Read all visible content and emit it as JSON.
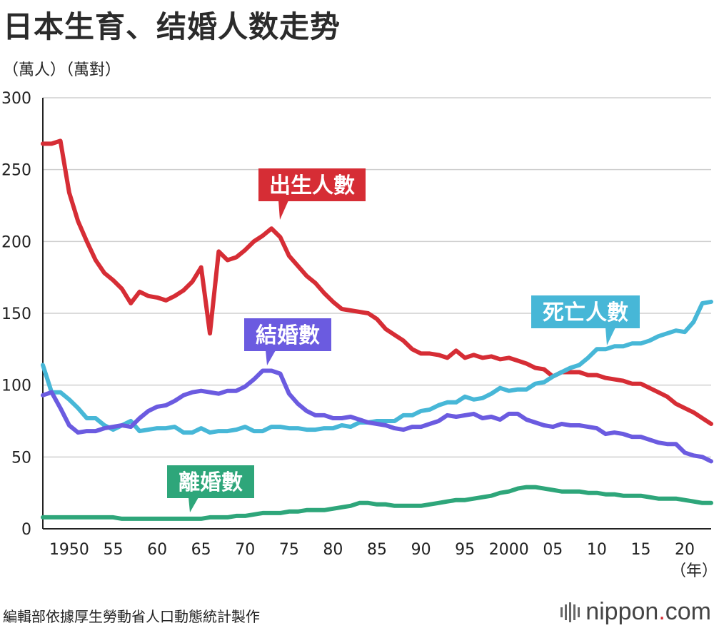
{
  "header": {
    "title": "日本生育、结婚人数走势",
    "units": "（萬人）（萬對）"
  },
  "footer": {
    "source": "編輯部依據厚生勞動省人口動態統計製作",
    "logo_main": "nippon",
    "logo_dot": ".",
    "logo_tail": "com"
  },
  "chart_data": {
    "type": "line",
    "title": "日本生育、结婚人数走势",
    "ylabel": "（萬人）（萬對）",
    "xlabel": "（年）",
    "xlim": [
      1947,
      2023
    ],
    "ylim": [
      0,
      300
    ],
    "yticks": [
      0,
      50,
      100,
      150,
      200,
      250,
      300
    ],
    "xticks": [
      {
        "x": 1950,
        "label": "1950"
      },
      {
        "x": 1955,
        "label": "55"
      },
      {
        "x": 1960,
        "label": "60"
      },
      {
        "x": 1965,
        "label": "65"
      },
      {
        "x": 1970,
        "label": "70"
      },
      {
        "x": 1975,
        "label": "75"
      },
      {
        "x": 1980,
        "label": "80"
      },
      {
        "x": 1985,
        "label": "85"
      },
      {
        "x": 1990,
        "label": "90"
      },
      {
        "x": 1995,
        "label": "95"
      },
      {
        "x": 2000,
        "label": "2000"
      },
      {
        "x": 2005,
        "label": "05"
      },
      {
        "x": 2010,
        "label": "10"
      },
      {
        "x": 2015,
        "label": "15"
      },
      {
        "x": 2020,
        "label": "20"
      }
    ],
    "grid": true,
    "series": [
      {
        "name": "出生人數",
        "color": "#d62d35",
        "start": 1947,
        "values": [
          268,
          268,
          270,
          234,
          214,
          200,
          187,
          178,
          173,
          167,
          157,
          165,
          162,
          161,
          159,
          162,
          166,
          172,
          182,
          136,
          193,
          187,
          189,
          194,
          200,
          204,
          209,
          203,
          190,
          183,
          176,
          171,
          164,
          158,
          153,
          152,
          151,
          150,
          146,
          139,
          135,
          131,
          125,
          122,
          122,
          121,
          119,
          124,
          119,
          121,
          119,
          120,
          118,
          119,
          117,
          115,
          112,
          111,
          106,
          109,
          109,
          109,
          107,
          107,
          105,
          104,
          103,
          101,
          101,
          98,
          95,
          92,
          87,
          84,
          81,
          77,
          73
        ]
      },
      {
        "name": "死亡人數",
        "color": "#47b7d7",
        "start": 1947,
        "values": [
          114,
          95,
          95,
          90,
          84,
          77,
          77,
          72,
          69,
          72,
          75,
          68,
          69,
          70,
          70,
          71,
          67,
          67,
          70,
          67,
          68,
          68,
          69,
          71,
          68,
          68,
          71,
          71,
          70,
          70,
          69,
          69,
          70,
          70,
          72,
          71,
          74,
          74,
          75,
          75,
          75,
          79,
          79,
          82,
          83,
          86,
          88,
          88,
          92,
          90,
          91,
          94,
          98,
          96,
          97,
          97,
          101,
          102,
          106,
          109,
          112,
          114,
          119,
          125,
          125,
          127,
          127,
          129,
          129,
          131,
          134,
          136,
          138,
          137,
          144,
          157,
          158
        ]
      },
      {
        "name": "結婚數",
        "color": "#6b5be0",
        "start": 1947,
        "values": [
          93,
          95,
          84,
          72,
          67,
          68,
          68,
          70,
          71,
          72,
          71,
          77,
          82,
          85,
          86,
          89,
          93,
          95,
          96,
          95,
          94,
          96,
          96,
          99,
          104,
          110,
          110,
          108,
          94,
          87,
          82,
          79,
          79,
          77,
          77,
          78,
          76,
          74,
          73,
          72,
          70,
          69,
          71,
          71,
          73,
          75,
          79,
          78,
          79,
          80,
          77,
          78,
          76,
          80,
          80,
          76,
          74,
          72,
          71,
          73,
          72,
          72,
          71,
          70,
          66,
          67,
          66,
          64,
          64,
          62,
          60,
          59,
          59,
          53,
          51,
          50,
          47
        ]
      },
      {
        "name": "離婚數",
        "color": "#2ea67a",
        "start": 1947,
        "values": [
          8,
          8,
          8,
          8,
          8,
          8,
          8,
          8,
          8,
          7,
          7,
          7,
          7,
          7,
          7,
          7,
          7,
          7,
          7,
          8,
          8,
          8,
          9,
          9,
          10,
          11,
          11,
          11,
          12,
          12,
          13,
          13,
          13,
          14,
          15,
          16,
          18,
          18,
          17,
          17,
          16,
          16,
          16,
          16,
          17,
          18,
          19,
          20,
          20,
          21,
          22,
          23,
          25,
          26,
          28,
          29,
          29,
          28,
          27,
          26,
          26,
          26,
          25,
          25,
          24,
          24,
          23,
          23,
          23,
          22,
          21,
          21,
          21,
          20,
          19,
          18,
          18
        ]
      }
    ],
    "annotations": [
      {
        "label": "出生人數",
        "color": "#d62d35",
        "series": "出生人數"
      },
      {
        "label": "死亡人數",
        "color": "#47b7d7",
        "series": "死亡人數"
      },
      {
        "label": "結婚數",
        "color": "#6b5be0",
        "series": "結婚數"
      },
      {
        "label": "離婚數",
        "color": "#2ea67a",
        "series": "離婚數"
      }
    ]
  }
}
